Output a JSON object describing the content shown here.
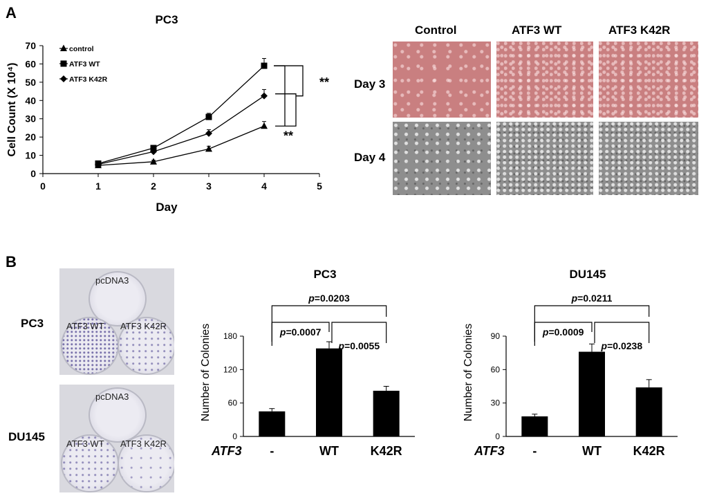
{
  "panel_a": {
    "letter": "A",
    "photo_columns": [
      "Control",
      "ATF3 WT",
      "ATF3 K42R"
    ],
    "photo_rows": [
      "Day 3",
      "Day 4"
    ]
  },
  "panel_b": {
    "letter": "B",
    "dish_rows": [
      "PC3",
      "DU145"
    ],
    "dish_labels": [
      "pcDNA3",
      "ATF3 WT",
      "ATF3 K42R"
    ]
  },
  "chart_data": [
    {
      "type": "line",
      "title": "PC3",
      "xlabel": "Day",
      "ylabel_html": "Cell Count (X 10⁴)",
      "x": [
        1,
        2,
        3,
        4
      ],
      "xlim": [
        0,
        5
      ],
      "xticks": [
        "0",
        "1",
        "2",
        "3",
        "4",
        "5"
      ],
      "ylim": [
        0,
        70
      ],
      "yticks": [
        "0",
        "10",
        "20",
        "30",
        "40",
        "50",
        "60",
        "70"
      ],
      "series": [
        {
          "name": "control",
          "marker": "triangle",
          "values": [
            4.5,
            6.5,
            13.5,
            26
          ],
          "errors": [
            0.5,
            0.8,
            1.5,
            2.5
          ]
        },
        {
          "name": "ATF3 WT",
          "marker": "square",
          "values": [
            5.5,
            14,
            31,
            59
          ],
          "errors": [
            0.6,
            1.0,
            2.0,
            4.0
          ]
        },
        {
          "name": "ATF3 K42R",
          "marker": "diamond",
          "values": [
            5,
            12,
            22,
            42.5
          ],
          "errors": [
            0.5,
            0.9,
            2.0,
            3.5
          ]
        }
      ],
      "annotations": [
        "**",
        "**"
      ]
    },
    {
      "type": "bar",
      "title": "PC3",
      "ylabel": "Number of Colonies",
      "condition_label": "ATF3",
      "categories": [
        "-",
        "WT",
        "K42R"
      ],
      "values": [
        45,
        158,
        82
      ],
      "errors": [
        5,
        12,
        8
      ],
      "ylim": [
        0,
        180
      ],
      "yticks": [
        "0",
        "60",
        "120",
        "180"
      ],
      "pvalues": [
        {
          "label": "p=0.0203",
          "p": "p",
          "value": "=0.0203"
        },
        {
          "label": "p=0.0007",
          "p": "p",
          "value": "=0.0007"
        },
        {
          "label": "p=0.0055",
          "p": "p",
          "value": "=0.0055"
        }
      ]
    },
    {
      "type": "bar",
      "title": "DU145",
      "ylabel": "Number of Colonies",
      "condition_label": "ATF3",
      "categories": [
        "-",
        "WT",
        "K42R"
      ],
      "values": [
        18,
        76,
        44
      ],
      "errors": [
        2,
        7,
        7
      ],
      "ylim": [
        0,
        90
      ],
      "yticks": [
        "0",
        "30",
        "60",
        "90"
      ],
      "pvalues": [
        {
          "label": "p=0.0211",
          "p": "p",
          "value": "=0.0211"
        },
        {
          "label": "p=0.0009",
          "p": "p",
          "value": "=0.0009"
        },
        {
          "label": "p=0.0238",
          "p": "p",
          "value": "=0.0238"
        }
      ]
    }
  ]
}
